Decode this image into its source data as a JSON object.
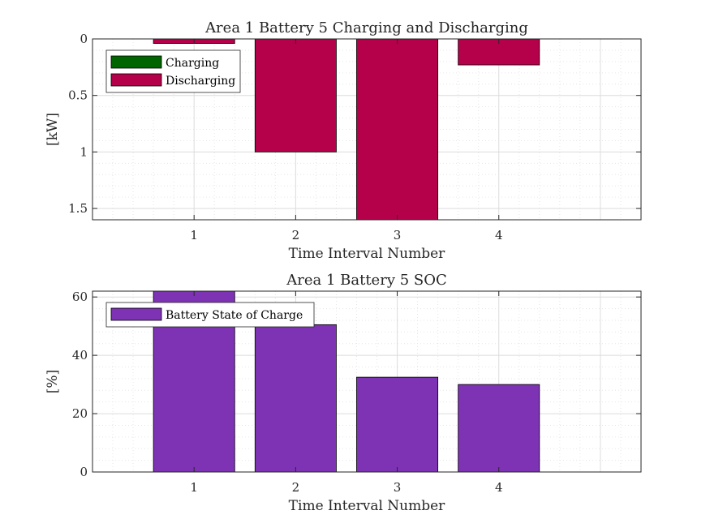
{
  "chart_data": [
    {
      "type": "bar",
      "title": "Area 1 Battery 5 Charging and Discharging",
      "xlabel": "Time Interval Number",
      "ylabel": "[kW]",
      "categories": [
        1,
        2,
        3,
        4
      ],
      "xlim": [
        0,
        5.4
      ],
      "ylim": [
        0,
        1.6
      ],
      "y_reversed": true,
      "yticks": [
        "0",
        "0.5",
        "1",
        "1.5"
      ],
      "xticks": [
        "1",
        "2",
        "3",
        "4"
      ],
      "grid": "major+minor",
      "legend_position": "top-left",
      "series": [
        {
          "name": "Charging",
          "color": "#006400",
          "values": [
            0,
            0,
            0,
            0
          ]
        },
        {
          "name": "Discharging",
          "color": "#B5004A",
          "values": [
            0.04,
            1.0,
            1.6,
            0.23
          ]
        }
      ]
    },
    {
      "type": "bar",
      "title": "Area 1 Battery 5 SOC",
      "xlabel": "Time Interval Number",
      "ylabel": "[%]",
      "categories": [
        1,
        2,
        3,
        4
      ],
      "xlim": [
        0,
        5.4
      ],
      "ylim": [
        0,
        62
      ],
      "yticks": [
        "0",
        "20",
        "40",
        "60"
      ],
      "xticks": [
        "1",
        "2",
        "3",
        "4"
      ],
      "grid": "major+minor",
      "legend_position": "top-left",
      "series": [
        {
          "name": "Battery State of Charge",
          "color": "#7E33B5",
          "values": [
            62,
            50.5,
            32.5,
            30
          ]
        }
      ]
    }
  ]
}
